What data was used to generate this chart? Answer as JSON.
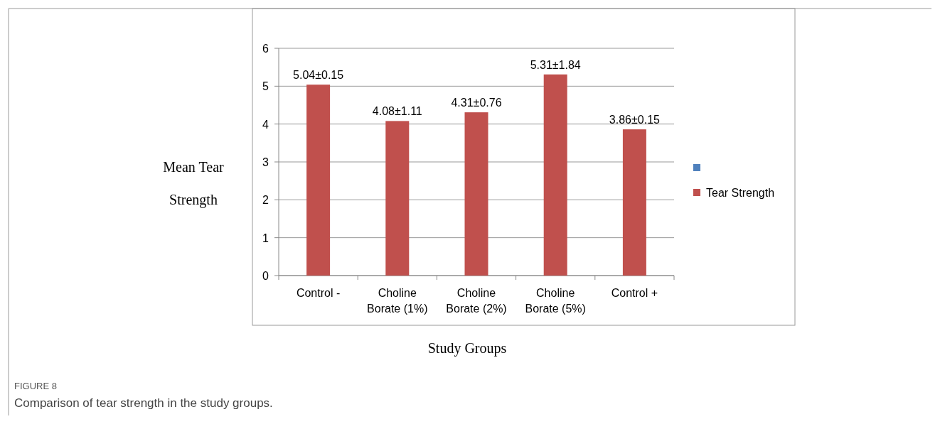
{
  "chart_data": {
    "type": "bar",
    "categories": [
      "Control -",
      "Choline Borate (1%)",
      "Choline Borate (2%)",
      "Choline Borate (5%)",
      "Control +"
    ],
    "series": [
      {
        "name": "Tear Strength",
        "color": "#c0504d",
        "values": [
          5.04,
          4.08,
          4.31,
          5.31,
          3.86
        ],
        "value_labels": [
          "5.04±0.15",
          "4.08±1.11",
          "4.31±0.76",
          "5.31±1.84",
          "3.86±0.15"
        ]
      }
    ],
    "ylim": [
      0,
      6
    ],
    "yticks": [
      0,
      1,
      2,
      3,
      4,
      5,
      6
    ],
    "grid": "y",
    "legend": "right",
    "xlabel": "Study Groups",
    "ylabel": "Mean Tear Strength",
    "annotations": [
      "FIGURE 8",
      "Comparison of tear strength in the study groups."
    ]
  }
}
